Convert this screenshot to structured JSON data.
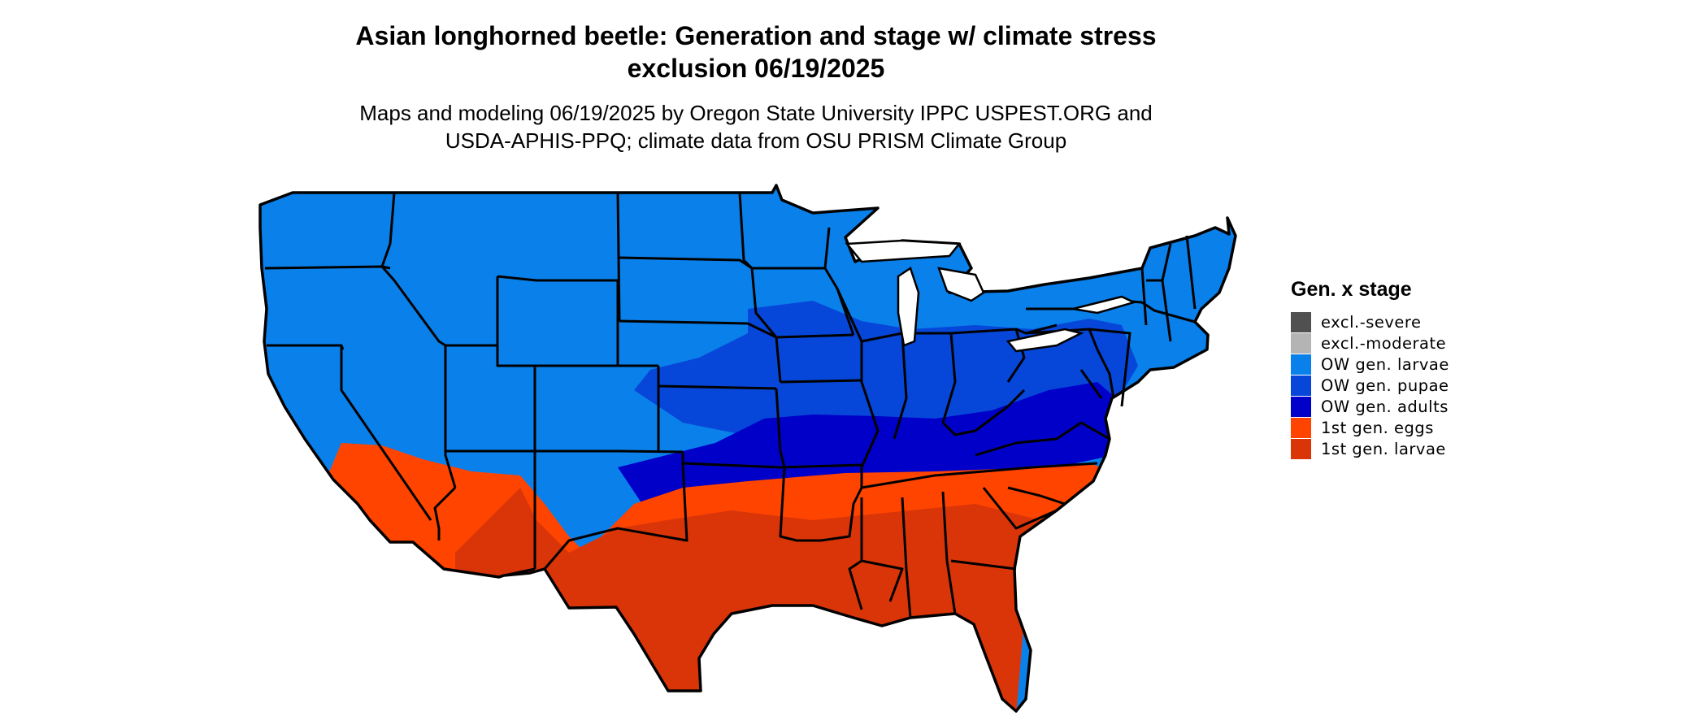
{
  "title": {
    "line1": "Asian longhorned beetle: Generation and stage w/ climate stress",
    "line2": "exclusion 06/19/2025"
  },
  "subtitle": {
    "line1": "Maps and modeling 06/19/2025 by Oregon State University IPPC USPEST.ORG and",
    "line2": "USDA-APHIS-PPQ; climate data from OSU PRISM Climate Group"
  },
  "legend": {
    "title": "Gen. x stage",
    "items": [
      {
        "label": "excl.-severe",
        "color": "#505050"
      },
      {
        "label": "excl.-moderate",
        "color": "#b4b4b4"
      },
      {
        "label": "OW gen. larvae",
        "color": "#0a80ea"
      },
      {
        "label": "OW gen. pupae",
        "color": "#0647d9"
      },
      {
        "label": "OW gen. adults",
        "color": "#0000c8"
      },
      {
        "label": "1st gen. eggs",
        "color": "#ff4400"
      },
      {
        "label": "1st gen. larvae",
        "color": "#d93509"
      }
    ]
  },
  "map_fill": {
    "state_border": "#000000",
    "water": "#ffffff"
  }
}
